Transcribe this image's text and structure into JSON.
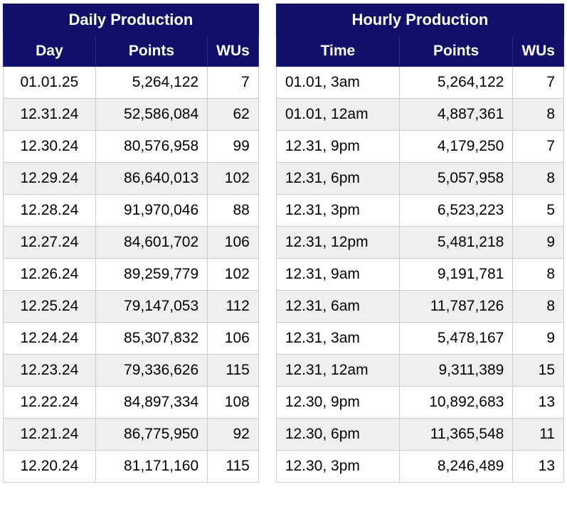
{
  "chart_data": [
    {
      "type": "table",
      "title": "Daily Production",
      "columns": [
        "Day",
        "Points",
        "WUs"
      ],
      "rows": [
        [
          "01.01.25",
          "5,264,122",
          "7"
        ],
        [
          "12.31.24",
          "52,586,084",
          "62"
        ],
        [
          "12.30.24",
          "80,576,958",
          "99"
        ],
        [
          "12.29.24",
          "86,640,013",
          "102"
        ],
        [
          "12.28.24",
          "91,970,046",
          "88"
        ],
        [
          "12.27.24",
          "84,601,702",
          "106"
        ],
        [
          "12.26.24",
          "89,259,779",
          "102"
        ],
        [
          "12.25.24",
          "79,147,053",
          "112"
        ],
        [
          "12.24.24",
          "85,307,832",
          "106"
        ],
        [
          "12.23.24",
          "79,336,626",
          "115"
        ],
        [
          "12.22.24",
          "84,897,334",
          "108"
        ],
        [
          "12.21.24",
          "86,775,950",
          "92"
        ],
        [
          "12.20.24",
          "81,171,160",
          "115"
        ]
      ]
    },
    {
      "type": "table",
      "title": "Hourly Production",
      "columns": [
        "Time",
        "Points",
        "WUs"
      ],
      "rows": [
        [
          "01.01, 3am",
          "5,264,122",
          "7"
        ],
        [
          "01.01, 12am",
          "4,887,361",
          "8"
        ],
        [
          "12.31, 9pm",
          "4,179,250",
          "7"
        ],
        [
          "12.31, 6pm",
          "5,057,958",
          "8"
        ],
        [
          "12.31, 3pm",
          "6,523,223",
          "5"
        ],
        [
          "12.31, 12pm",
          "5,481,218",
          "9"
        ],
        [
          "12.31, 9am",
          "9,191,781",
          "8"
        ],
        [
          "12.31, 6am",
          "11,787,126",
          "8"
        ],
        [
          "12.31, 3am",
          "5,478,167",
          "9"
        ],
        [
          "12.31, 12am",
          "9,311,389",
          "15"
        ],
        [
          "12.30, 9pm",
          "10,892,683",
          "13"
        ],
        [
          "12.30, 6pm",
          "11,365,548",
          "11"
        ],
        [
          "12.30, 3pm",
          "8,246,489",
          "13"
        ]
      ]
    }
  ],
  "colors": {
    "header_bg": "#10106b",
    "header_text": "#ffffff",
    "row_alt_bg": "#efefef",
    "border": "#cccccc",
    "body_text": "#000000"
  }
}
